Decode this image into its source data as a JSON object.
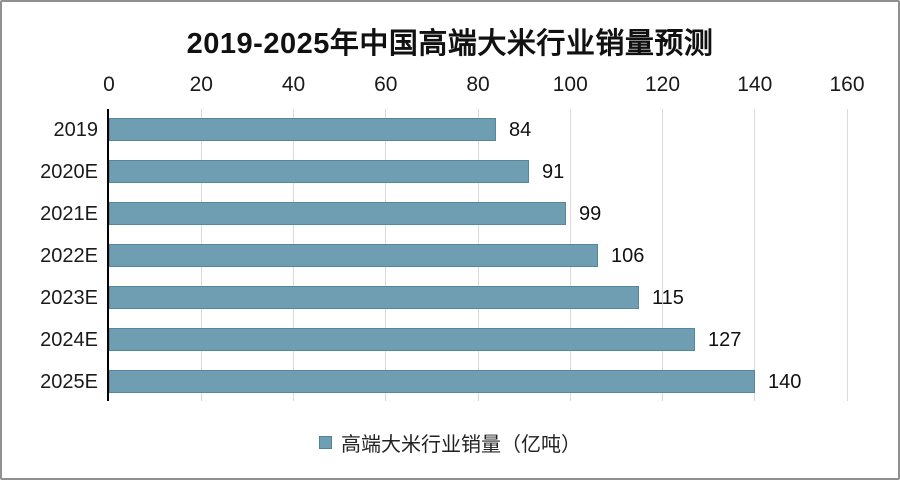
{
  "panel": {
    "background": "#ffffff",
    "frame_border_color": "#909090"
  },
  "chart_data": {
    "type": "bar",
    "orientation": "horizontal",
    "title": "2019-2025年中国高端大米行业销量预测",
    "categories": [
      "2019",
      "2020E",
      "2021E",
      "2022E",
      "2023E",
      "2024E",
      "2025E"
    ],
    "values": [
      84,
      91,
      99,
      106,
      115,
      127,
      140
    ],
    "value_labels": [
      "84",
      "91",
      "99",
      "106",
      "115",
      "127",
      "140"
    ],
    "x_ticks": [
      0,
      20,
      40,
      60,
      80,
      100,
      120,
      140,
      160
    ],
    "xlim": [
      0,
      160
    ],
    "x_axis_position": "top",
    "grid": "vertical gridlines at every x tick, behind bars",
    "legend": {
      "label": "高端大米行业销量（亿吨）",
      "position": "bottom-center"
    },
    "colors": {
      "bar_fill": "#6f9db2",
      "bar_border": "#55889f",
      "legend_marker_fill": "#6f9fb3",
      "legend_marker_border": "#4f829b",
      "gridline": "#d9d9d9",
      "axis_line": "#000000",
      "text": "#1a1a1a"
    }
  }
}
